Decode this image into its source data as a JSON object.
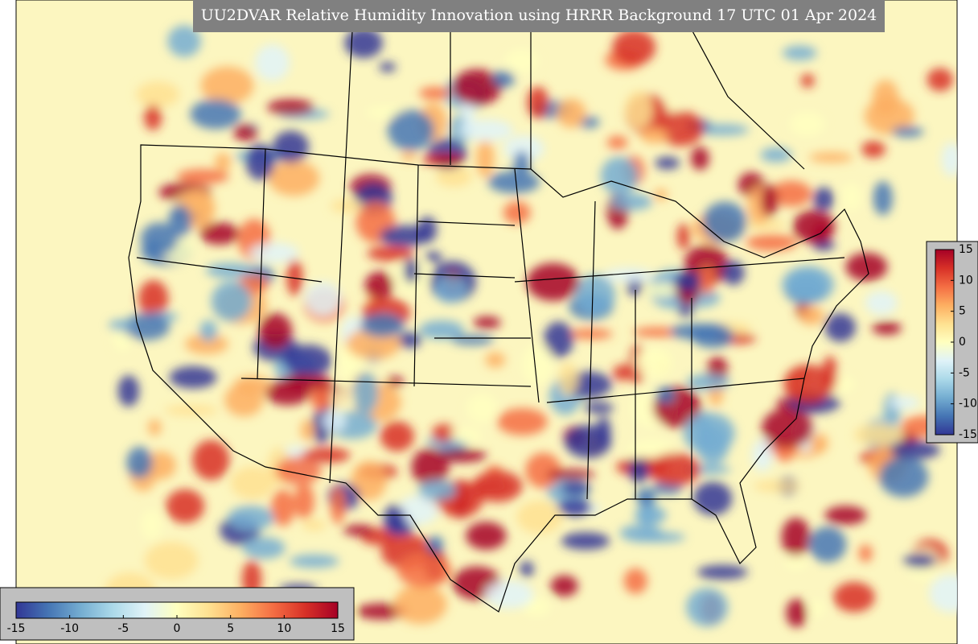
{
  "title": "UU2DVAR Relative Humidity Innovation using HRRR Background 17 UTC 01 Apr 2024",
  "colorbars": {
    "range": [
      -15,
      15
    ],
    "colormap": [
      "#313695",
      "#4575b4",
      "#74add1",
      "#abd9e9",
      "#e0f3f8",
      "#ffffbf",
      "#fee090",
      "#fdae61",
      "#f46d43",
      "#d73027",
      "#a50026"
    ],
    "horizontal_ticks": [
      -15,
      -10,
      -5,
      0,
      5,
      10,
      15
    ],
    "vertical_ticks": [
      15,
      10,
      5,
      0,
      -5,
      -10,
      -15
    ]
  }
}
